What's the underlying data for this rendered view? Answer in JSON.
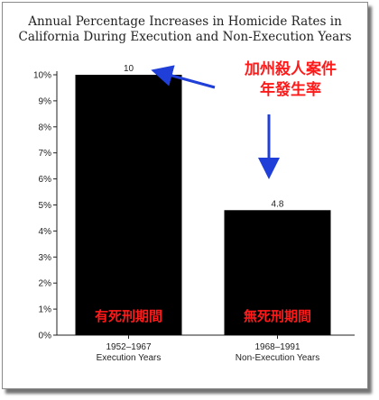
{
  "chart_data": {
    "type": "bar",
    "title_lines": [
      "Annual Percentage Increases in Homicide Rates in",
      "California During Execution and Non-Execution Years"
    ],
    "categories": [
      [
        "1952–1967",
        "Execution Years"
      ],
      [
        "1968–1991",
        "Non-Execution Years"
      ]
    ],
    "values": [
      10,
      4.8
    ],
    "value_labels": [
      "10",
      "4.8"
    ],
    "y_ticks": [
      "0%",
      "1%",
      "2%",
      "3%",
      "4%",
      "5%",
      "6%",
      "7%",
      "8%",
      "9%",
      "10%"
    ],
    "ylim": [
      0,
      10
    ],
    "bar_color": "#000000",
    "grid": false,
    "annotations": {
      "bar_texts": [
        "有死刑期間",
        "無死刑期間"
      ],
      "note_lines": [
        "加州殺人案件",
        "年發生率"
      ],
      "note_color": "#ff1a1a",
      "arrow_color": "#1f3fd8"
    }
  }
}
